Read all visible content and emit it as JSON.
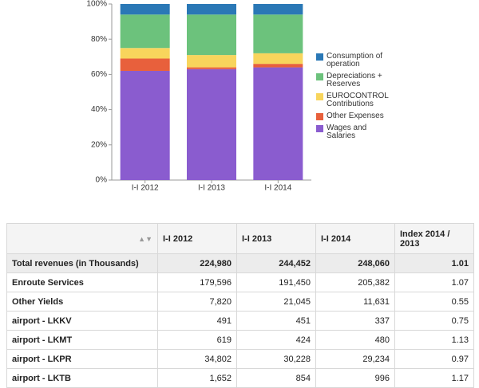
{
  "chart_data": {
    "type": "stacked-bar",
    "categories": [
      "I-I 2012",
      "I-I 2013",
      "I-I 2014"
    ],
    "series": [
      {
        "name": "Wages and Salaries",
        "color": "#8a5ccf",
        "values": [
          62,
          63,
          64
        ]
      },
      {
        "name": "Other Expenses",
        "color": "#e8603c",
        "values": [
          7,
          1,
          2
        ]
      },
      {
        "name": "EUROCONTROL Contributions",
        "color": "#f8d55c",
        "values": [
          6,
          7,
          6
        ]
      },
      {
        "name": "Depreciations + Reserves",
        "color": "#6cc27c",
        "values": [
          19,
          23,
          22
        ]
      },
      {
        "name": "Consumption of operation",
        "color": "#2a78b6",
        "values": [
          6,
          6,
          6
        ]
      }
    ],
    "ylim": [
      0,
      100
    ],
    "yticks": [
      {
        "value": 0,
        "label": "0%"
      },
      {
        "value": 20,
        "label": "20%"
      },
      {
        "value": 40,
        "label": "40%"
      },
      {
        "value": 60,
        "label": "60%"
      },
      {
        "value": 80,
        "label": "80%"
      },
      {
        "value": 100,
        "label": "100%"
      }
    ],
    "legend": "right"
  },
  "table": {
    "headers": [
      "I-I 2012",
      "I-I 2013",
      "I-I 2014",
      "Index 2014 / 2013"
    ],
    "rows": [
      [
        "Total revenues (in Thousands)",
        "224,980",
        "244,452",
        "248,060",
        "1.01"
      ],
      [
        "Enroute Services",
        "179,596",
        "191,450",
        "205,382",
        "1.07"
      ],
      [
        "Other Yields",
        "7,820",
        "21,045",
        "11,631",
        "0.55"
      ],
      [
        "airport - LKKV",
        "491",
        "451",
        "337",
        "0.75"
      ],
      [
        "airport - LKMT",
        "619",
        "424",
        "480",
        "1.13"
      ],
      [
        "airport - LKPR",
        "34,802",
        "30,228",
        "29,234",
        "0.97"
      ],
      [
        "airport - LKTB",
        "1,652",
        "854",
        "996",
        "1.17"
      ]
    ]
  }
}
